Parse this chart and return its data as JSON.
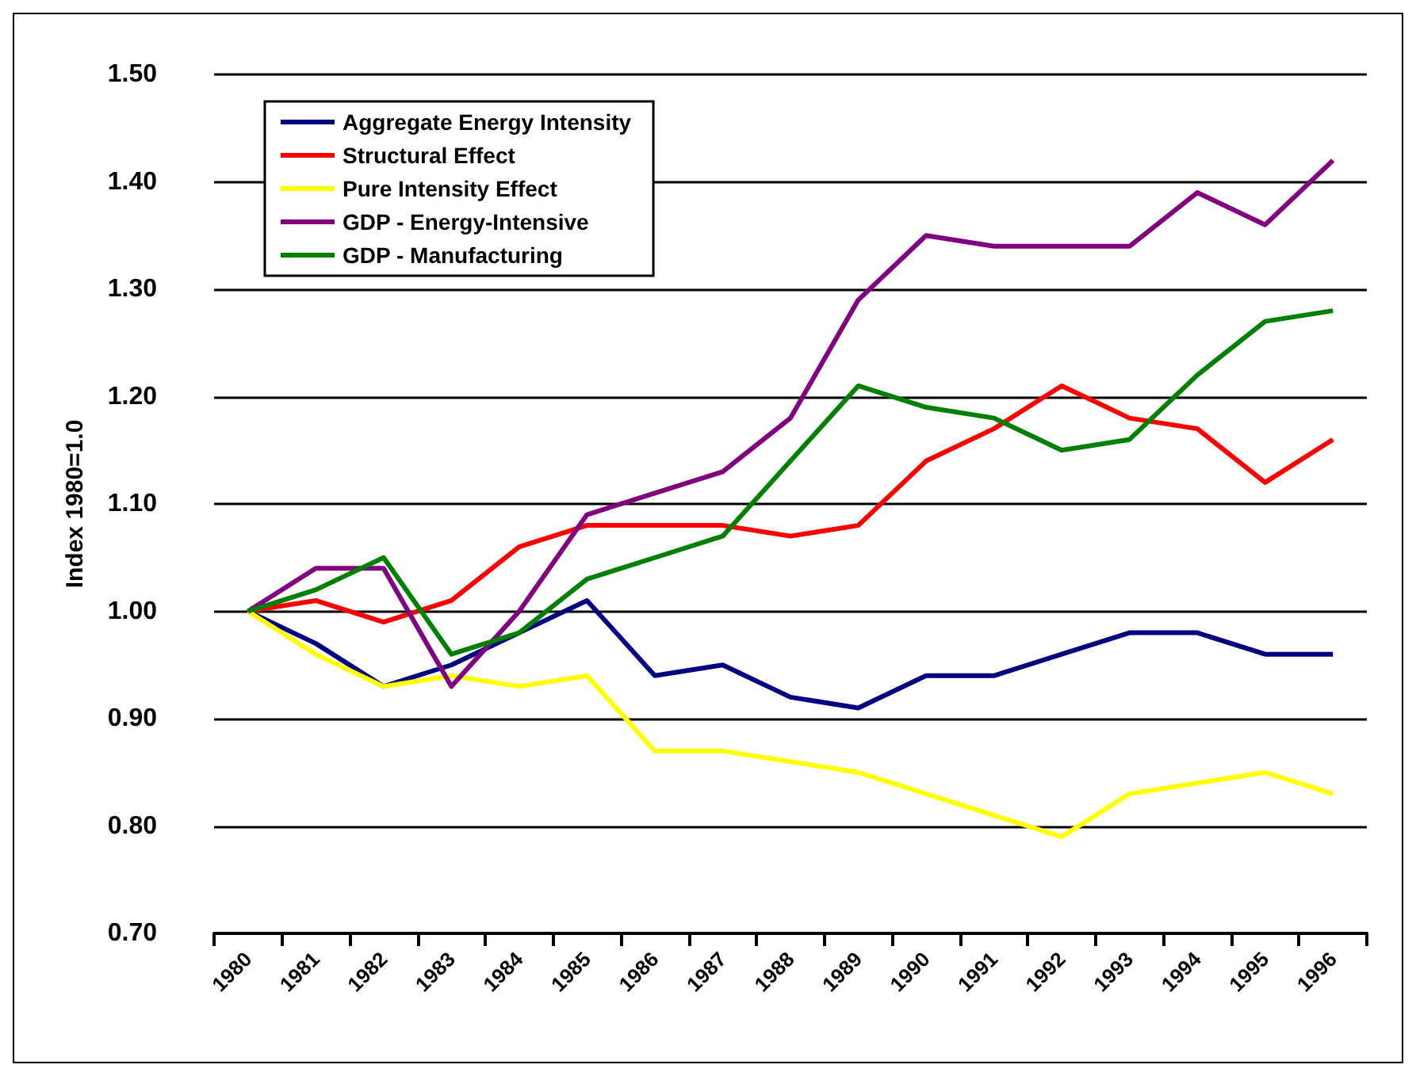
{
  "chart_data": {
    "type": "line",
    "ylabel": "Index 1980=1.0",
    "categories": [
      "1980",
      "1981",
      "1982",
      "1983",
      "1984",
      "1985",
      "1986",
      "1987",
      "1988",
      "1989",
      "1990",
      "1991",
      "1992",
      "1993",
      "1994",
      "1995",
      "1996"
    ],
    "series": [
      {
        "name": "Aggregate Energy Intensity",
        "color": "#000080",
        "values": [
          1.0,
          0.97,
          0.93,
          0.95,
          0.98,
          1.01,
          0.94,
          0.95,
          0.92,
          0.91,
          0.94,
          0.94,
          0.96,
          0.98,
          0.98,
          0.96,
          0.96
        ]
      },
      {
        "name": "Structural Effect",
        "color": "#ff0000",
        "values": [
          1.0,
          1.01,
          0.99,
          1.01,
          1.06,
          1.08,
          1.08,
          1.08,
          1.07,
          1.08,
          1.14,
          1.17,
          1.21,
          1.18,
          1.17,
          1.12,
          1.16
        ]
      },
      {
        "name": "Pure Intensity Effect",
        "color": "#ffff00",
        "values": [
          1.0,
          0.96,
          0.93,
          0.94,
          0.93,
          0.94,
          0.87,
          0.87,
          0.86,
          0.85,
          0.83,
          0.81,
          0.79,
          0.83,
          0.84,
          0.85,
          0.83
        ]
      },
      {
        "name": "GDP - Energy-Intensive",
        "color": "#800080",
        "values": [
          1.0,
          1.04,
          1.04,
          0.93,
          1.0,
          1.09,
          1.11,
          1.13,
          1.18,
          1.29,
          1.35,
          1.34,
          1.34,
          1.34,
          1.39,
          1.36,
          1.42
        ]
      },
      {
        "name": "GDP - Manufacturing",
        "color": "#008000",
        "values": [
          1.0,
          1.02,
          1.05,
          0.96,
          0.98,
          1.03,
          1.05,
          1.07,
          1.14,
          1.21,
          1.19,
          1.18,
          1.15,
          1.16,
          1.22,
          1.27,
          1.28
        ]
      }
    ],
    "ylim": [
      0.7,
      1.5
    ],
    "yticks": [
      {
        "value": 0.7,
        "label": "0.70"
      },
      {
        "value": 0.8,
        "label": "0.80"
      },
      {
        "value": 0.9,
        "label": "0.90"
      },
      {
        "value": 1.0,
        "label": "1.00"
      },
      {
        "value": 1.1,
        "label": "1.10"
      },
      {
        "value": 1.2,
        "label": "1.20"
      },
      {
        "value": 1.3,
        "label": "1.30"
      },
      {
        "value": 1.4,
        "label": "1.40"
      },
      {
        "value": 1.5,
        "label": "1.50"
      }
    ],
    "grid": "y",
    "legend": "top left",
    "marker": "none",
    "line_style": "solid"
  }
}
